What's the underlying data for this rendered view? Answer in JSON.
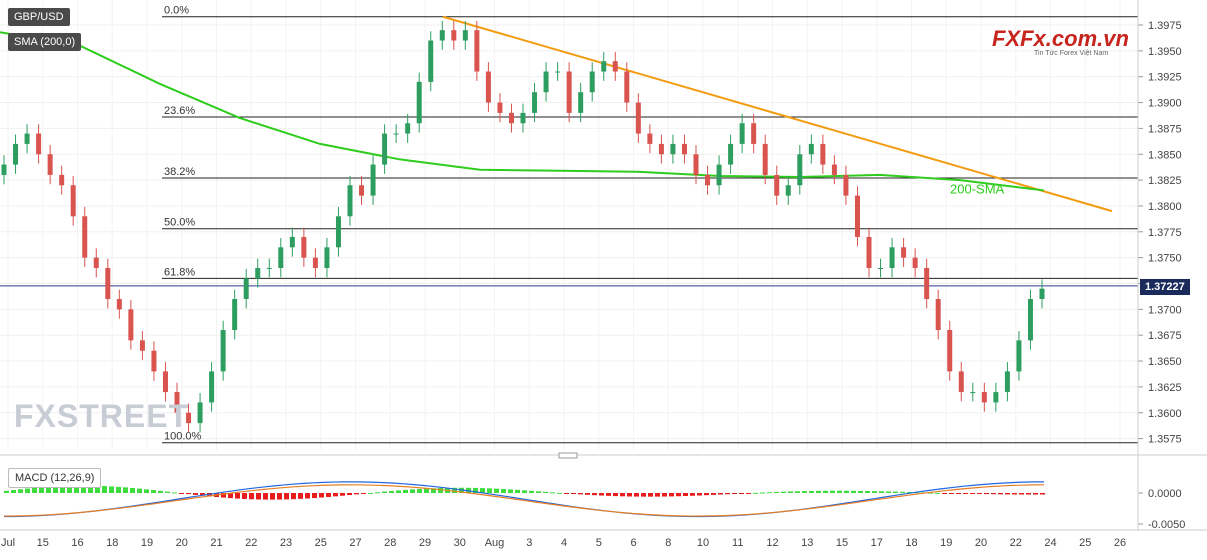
{
  "header": {
    "symbol": "GBP/USD",
    "indicator": "SMA (200,0)"
  },
  "watermark": {
    "fxstreet": "FXSTREET",
    "logo_main": "FXFx.com.vn",
    "logo_sub": "Tin Tức Forex Việt Nam"
  },
  "chart_data": {
    "type": "candlestick",
    "price_axis": {
      "ticks": [
        "1.3975",
        "1.3950",
        "1.3925",
        "1.3900",
        "1.3875",
        "1.3850",
        "1.3825",
        "1.3800",
        "1.3775",
        "1.3750",
        "1.3725",
        "1.3700",
        "1.3675",
        "1.3650",
        "1.3625",
        "1.3600",
        "1.3575"
      ],
      "ylim": [
        1.3565,
        1.399
      ]
    },
    "current_price": "1.37227",
    "date_axis": [
      "Jul",
      "15",
      "16",
      "18",
      "19",
      "20",
      "21",
      "22",
      "23",
      "25",
      "27",
      "28",
      "29",
      "30",
      "Aug",
      "3",
      "4",
      "5",
      "6",
      "8",
      "10",
      "11",
      "12",
      "13",
      "15",
      "17",
      "18",
      "19",
      "20",
      "22",
      "24",
      "25",
      "26"
    ],
    "fibonacci": [
      {
        "label": "0.0%",
        "price": 1.3983
      },
      {
        "label": "23.6%",
        "price": 1.3886
      },
      {
        "label": "38.2%",
        "price": 1.3827
      },
      {
        "label": "50.0%",
        "price": 1.3778
      },
      {
        "label": "61.8%",
        "price": 1.373
      },
      {
        "label": "100.0%",
        "price": 1.3571
      }
    ],
    "sma_label": "200-SMA",
    "close_series": [
      1.384,
      1.386,
      1.387,
      1.385,
      1.383,
      1.382,
      1.379,
      1.375,
      1.374,
      1.371,
      1.37,
      1.367,
      1.366,
      1.364,
      1.362,
      1.36,
      1.359,
      1.361,
      1.364,
      1.368,
      1.371,
      1.373,
      1.374,
      1.374,
      1.376,
      1.377,
      1.375,
      1.374,
      1.376,
      1.379,
      1.382,
      1.381,
      1.384,
      1.387,
      1.387,
      1.388,
      1.392,
      1.396,
      1.397,
      1.396,
      1.397,
      1.393,
      1.39,
      1.389,
      1.388,
      1.389,
      1.391,
      1.393,
      1.393,
      1.389,
      1.391,
      1.393,
      1.394,
      1.393,
      1.39,
      1.387,
      1.386,
      1.385,
      1.386,
      1.385,
      1.383,
      1.382,
      1.384,
      1.386,
      1.388,
      1.386,
      1.383,
      1.381,
      1.382,
      1.385,
      1.386,
      1.384,
      1.383,
      1.381,
      1.377,
      1.374,
      1.374,
      1.376,
      1.375,
      1.374,
      1.371,
      1.368,
      1.364,
      1.362,
      1.362,
      1.361,
      1.362,
      1.364,
      1.367,
      1.371,
      1.372
    ],
    "macd": {
      "label": "MACD (12,26,9)",
      "ticks": [
        "0.0000",
        "-0.0050"
      ]
    }
  }
}
